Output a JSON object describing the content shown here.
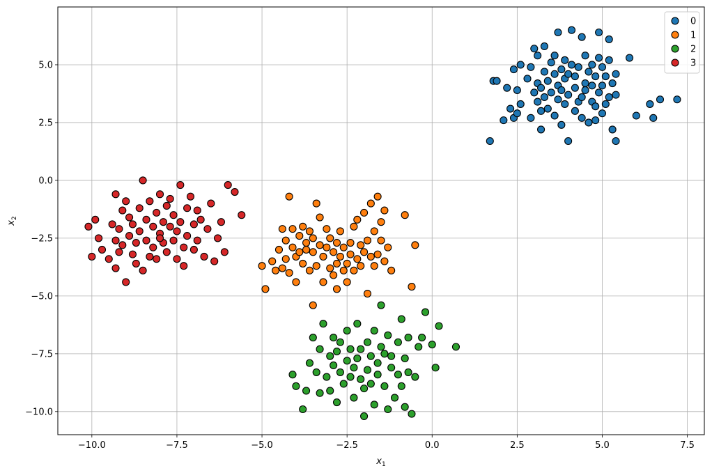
{
  "chart_data": {
    "type": "scatter",
    "xlabel": "x",
    "xlabel_sub": "1",
    "ylabel": "x",
    "ylabel_sub": "2",
    "xlim": [
      -11.0,
      8.0
    ],
    "ylim": [
      -11.0,
      7.5
    ],
    "xticks": [
      -10.0,
      -7.5,
      -5.0,
      -2.5,
      0.0,
      2.5,
      5.0,
      7.5
    ],
    "xtick_labels": [
      "−10.0",
      "−7.5",
      "−5.0",
      "−2.5",
      "0.0",
      "2.5",
      "5.0",
      "7.5"
    ],
    "yticks": [
      -10.0,
      -7.5,
      -5.0,
      -2.5,
      0.0,
      2.5,
      5.0
    ],
    "ytick_labels": [
      "−10.0",
      "−7.5",
      "−5.0",
      "−2.5",
      "0.0",
      "2.5",
      "5.0"
    ],
    "grid": true,
    "legend_position": "top-right",
    "series": [
      {
        "name": "0",
        "color": "#1f77b4",
        "points": [
          [
            1.7,
            1.7
          ],
          [
            1.8,
            4.3
          ],
          [
            1.9,
            4.3
          ],
          [
            2.1,
            2.6
          ],
          [
            2.2,
            4.0
          ],
          [
            2.3,
            3.1
          ],
          [
            2.4,
            2.7
          ],
          [
            2.4,
            4.8
          ],
          [
            2.5,
            2.9
          ],
          [
            2.5,
            3.9
          ],
          [
            2.6,
            5.0
          ],
          [
            2.6,
            3.3
          ],
          [
            2.8,
            4.4
          ],
          [
            2.9,
            2.7
          ],
          [
            2.9,
            4.9
          ],
          [
            3.0,
            3.8
          ],
          [
            3.0,
            5.7
          ],
          [
            3.1,
            3.4
          ],
          [
            3.1,
            4.2
          ],
          [
            3.1,
            5.4
          ],
          [
            3.2,
            4.0
          ],
          [
            3.2,
            3.0
          ],
          [
            3.2,
            2.2
          ],
          [
            3.3,
            4.7
          ],
          [
            3.3,
            3.6
          ],
          [
            3.3,
            5.8
          ],
          [
            3.4,
            4.3
          ],
          [
            3.4,
            3.1
          ],
          [
            3.5,
            5.1
          ],
          [
            3.5,
            3.8
          ],
          [
            3.6,
            4.6
          ],
          [
            3.6,
            5.4
          ],
          [
            3.6,
            2.8
          ],
          [
            3.7,
            4.1
          ],
          [
            3.7,
            3.5
          ],
          [
            3.7,
            6.4
          ],
          [
            3.8,
            4.8
          ],
          [
            3.8,
            3.9
          ],
          [
            3.8,
            2.4
          ],
          [
            3.9,
            5.2
          ],
          [
            3.9,
            4.4
          ],
          [
            3.9,
            3.3
          ],
          [
            4.0,
            1.7
          ],
          [
            4.0,
            4.6
          ],
          [
            4.0,
            3.7
          ],
          [
            4.1,
            6.5
          ],
          [
            4.1,
            5.0
          ],
          [
            4.2,
            4.0
          ],
          [
            4.2,
            3.0
          ],
          [
            4.2,
            4.5
          ],
          [
            4.3,
            3.4
          ],
          [
            4.3,
            4.9
          ],
          [
            4.4,
            3.6
          ],
          [
            4.4,
            6.2
          ],
          [
            4.4,
            2.7
          ],
          [
            4.5,
            4.2
          ],
          [
            4.5,
            5.4
          ],
          [
            4.5,
            3.9
          ],
          [
            4.6,
            2.5
          ],
          [
            4.6,
            4.7
          ],
          [
            4.7,
            3.4
          ],
          [
            4.7,
            5.0
          ],
          [
            4.7,
            4.1
          ],
          [
            4.8,
            3.2
          ],
          [
            4.8,
            4.5
          ],
          [
            4.8,
            2.6
          ],
          [
            4.9,
            5.3
          ],
          [
            4.9,
            3.8
          ],
          [
            4.9,
            6.4
          ],
          [
            5.0,
            4.9
          ],
          [
            5.0,
            4.1
          ],
          [
            5.0,
            2.9
          ],
          [
            5.1,
            3.3
          ],
          [
            5.1,
            4.5
          ],
          [
            5.2,
            3.6
          ],
          [
            5.2,
            6.1
          ],
          [
            5.2,
            5.2
          ],
          [
            5.3,
            4.2
          ],
          [
            5.3,
            2.2
          ],
          [
            5.4,
            4.6
          ],
          [
            5.4,
            3.7
          ],
          [
            5.4,
            1.7
          ],
          [
            5.8,
            5.3
          ],
          [
            6.0,
            2.8
          ],
          [
            6.4,
            3.3
          ],
          [
            6.5,
            2.7
          ],
          [
            6.7,
            3.5
          ],
          [
            7.2,
            3.5
          ]
        ]
      },
      {
        "name": "1",
        "color": "#ff7f0e",
        "points": [
          [
            -5.0,
            -3.7
          ],
          [
            -4.9,
            -4.7
          ],
          [
            -4.7,
            -3.5
          ],
          [
            -4.6,
            -3.9
          ],
          [
            -4.5,
            -3.0
          ],
          [
            -4.4,
            -3.8
          ],
          [
            -4.4,
            -2.1
          ],
          [
            -4.3,
            -2.6
          ],
          [
            -4.3,
            -3.4
          ],
          [
            -4.2,
            -4.0
          ],
          [
            -4.2,
            -0.7
          ],
          [
            -4.1,
            -2.9
          ],
          [
            -4.1,
            -2.1
          ],
          [
            -4.0,
            -3.3
          ],
          [
            -4.0,
            -4.4
          ],
          [
            -3.9,
            -2.4
          ],
          [
            -3.9,
            -3.1
          ],
          [
            -3.8,
            -2.0
          ],
          [
            -3.8,
            -3.6
          ],
          [
            -3.7,
            -2.7
          ],
          [
            -3.7,
            -3.0
          ],
          [
            -3.6,
            -2.2
          ],
          [
            -3.6,
            -3.9
          ],
          [
            -3.5,
            -3.1
          ],
          [
            -3.5,
            -2.5
          ],
          [
            -3.4,
            -3.7
          ],
          [
            -3.4,
            -1.0
          ],
          [
            -3.3,
            -2.8
          ],
          [
            -3.3,
            -1.6
          ],
          [
            -3.2,
            -3.3
          ],
          [
            -3.2,
            -4.4
          ],
          [
            -3.1,
            -2.1
          ],
          [
            -3.1,
            -2.9
          ],
          [
            -3.0,
            -3.8
          ],
          [
            -3.0,
            -2.5
          ],
          [
            -2.9,
            -4.1
          ],
          [
            -2.9,
            -3.1
          ],
          [
            -2.8,
            -2.7
          ],
          [
            -2.8,
            -3.6
          ],
          [
            -2.8,
            -4.7
          ],
          [
            -2.7,
            -2.2
          ],
          [
            -2.7,
            -3.3
          ],
          [
            -2.6,
            -3.9
          ],
          [
            -2.6,
            -2.9
          ],
          [
            -2.5,
            -3.6
          ],
          [
            -2.5,
            -4.4
          ],
          [
            -2.4,
            -2.7
          ],
          [
            -2.4,
            -3.2
          ],
          [
            -2.3,
            -3.9
          ],
          [
            -2.3,
            -2.0
          ],
          [
            -2.2,
            -3.4
          ],
          [
            -2.2,
            -1.7
          ],
          [
            -2.1,
            -2.8
          ],
          [
            -2.1,
            -3.7
          ],
          [
            -2.0,
            -1.4
          ],
          [
            -2.0,
            -3.1
          ],
          [
            -1.9,
            -4.9
          ],
          [
            -1.9,
            -2.6
          ],
          [
            -1.8,
            -3.3
          ],
          [
            -1.8,
            -1.0
          ],
          [
            -1.7,
            -3.7
          ],
          [
            -1.7,
            -2.2
          ],
          [
            -1.6,
            -0.7
          ],
          [
            -1.6,
            -3.2
          ],
          [
            -1.5,
            -1.8
          ],
          [
            -1.5,
            -2.6
          ],
          [
            -1.4,
            -3.5
          ],
          [
            -1.4,
            -1.3
          ],
          [
            -1.3,
            -2.9
          ],
          [
            -1.2,
            -3.9
          ],
          [
            -0.8,
            -1.5
          ],
          [
            -0.6,
            -4.6
          ],
          [
            -0.5,
            -2.8
          ],
          [
            -3.5,
            -5.4
          ]
        ]
      },
      {
        "name": "2",
        "color": "#2ca02c",
        "points": [
          [
            -3.8,
            -9.9
          ],
          [
            -3.7,
            -9.1
          ],
          [
            -3.6,
            -7.9
          ],
          [
            -3.5,
            -6.8
          ],
          [
            -3.4,
            -8.3
          ],
          [
            -3.3,
            -7.3
          ],
          [
            -3.3,
            -9.2
          ],
          [
            -3.2,
            -6.2
          ],
          [
            -3.1,
            -8.5
          ],
          [
            -3.0,
            -7.6
          ],
          [
            -3.0,
            -9.1
          ],
          [
            -2.9,
            -8.0
          ],
          [
            -2.9,
            -6.8
          ],
          [
            -2.8,
            -7.4
          ],
          [
            -2.8,
            -9.6
          ],
          [
            -2.7,
            -8.3
          ],
          [
            -2.7,
            -7.0
          ],
          [
            -2.6,
            -8.8
          ],
          [
            -2.5,
            -7.8
          ],
          [
            -2.5,
            -6.5
          ],
          [
            -2.4,
            -8.5
          ],
          [
            -2.4,
            -7.3
          ],
          [
            -2.3,
            -9.4
          ],
          [
            -2.3,
            -8.1
          ],
          [
            -2.2,
            -7.7
          ],
          [
            -2.2,
            -6.2
          ],
          [
            -2.1,
            -8.6
          ],
          [
            -2.1,
            -7.3
          ],
          [
            -2.0,
            -9.0
          ],
          [
            -2.0,
            -10.2
          ],
          [
            -1.9,
            -8.2
          ],
          [
            -1.9,
            -7.0
          ],
          [
            -1.8,
            -7.6
          ],
          [
            -1.8,
            -8.8
          ],
          [
            -1.7,
            -6.5
          ],
          [
            -1.7,
            -9.7
          ],
          [
            -1.6,
            -7.9
          ],
          [
            -1.6,
            -8.4
          ],
          [
            -1.5,
            -7.2
          ],
          [
            -1.5,
            -5.4
          ],
          [
            -1.4,
            -8.9
          ],
          [
            -1.4,
            -7.5
          ],
          [
            -1.3,
            -9.9
          ],
          [
            -1.3,
            -6.7
          ],
          [
            -1.2,
            -8.1
          ],
          [
            -1.2,
            -7.6
          ],
          [
            -1.1,
            -9.4
          ],
          [
            -1.0,
            -8.4
          ],
          [
            -1.0,
            -7.0
          ],
          [
            -0.9,
            -8.9
          ],
          [
            -0.9,
            -6.0
          ],
          [
            -0.8,
            -7.7
          ],
          [
            -0.8,
            -9.8
          ],
          [
            -0.7,
            -8.3
          ],
          [
            -0.7,
            -6.8
          ],
          [
            -0.6,
            -10.1
          ],
          [
            -0.5,
            -8.5
          ],
          [
            -0.4,
            -7.2
          ],
          [
            -0.3,
            -6.8
          ],
          [
            -0.2,
            -5.7
          ],
          [
            0.0,
            -7.1
          ],
          [
            0.1,
            -8.1
          ],
          [
            0.2,
            -6.3
          ],
          [
            0.7,
            -7.2
          ],
          [
            -4.0,
            -8.9
          ],
          [
            -4.1,
            -8.4
          ]
        ]
      },
      {
        "name": "3",
        "color": "#d62728",
        "points": [
          [
            -10.1,
            -2.0
          ],
          [
            -10.0,
            -3.3
          ],
          [
            -9.9,
            -1.7
          ],
          [
            -9.8,
            -2.5
          ],
          [
            -9.7,
            -3.0
          ],
          [
            -9.5,
            -3.4
          ],
          [
            -9.4,
            -1.9
          ],
          [
            -9.3,
            -2.6
          ],
          [
            -9.3,
            -0.6
          ],
          [
            -9.2,
            -2.1
          ],
          [
            -9.2,
            -3.1
          ],
          [
            -9.1,
            -1.3
          ],
          [
            -9.1,
            -2.8
          ],
          [
            -9.0,
            -4.4
          ],
          [
            -9.0,
            -0.9
          ],
          [
            -8.9,
            -2.4
          ],
          [
            -8.9,
            -1.6
          ],
          [
            -8.8,
            -3.2
          ],
          [
            -8.8,
            -1.9
          ],
          [
            -8.7,
            -3.6
          ],
          [
            -8.7,
            -2.7
          ],
          [
            -8.6,
            -1.2
          ],
          [
            -8.6,
            -2.2
          ],
          [
            -8.5,
            -3.9
          ],
          [
            -8.5,
            0.0
          ],
          [
            -8.4,
            -1.7
          ],
          [
            -8.4,
            -2.6
          ],
          [
            -8.3,
            -3.3
          ],
          [
            -8.3,
            -0.9
          ],
          [
            -8.2,
            -2.0
          ],
          [
            -8.2,
            -2.9
          ],
          [
            -8.1,
            -1.4
          ],
          [
            -8.1,
            -3.4
          ],
          [
            -8.0,
            -2.3
          ],
          [
            -8.0,
            -0.6
          ],
          [
            -7.9,
            -1.8
          ],
          [
            -7.9,
            -2.7
          ],
          [
            -7.8,
            -1.1
          ],
          [
            -7.8,
            -3.1
          ],
          [
            -7.7,
            -2.0
          ],
          [
            -7.7,
            -0.8
          ],
          [
            -7.6,
            -2.6
          ],
          [
            -7.6,
            -1.5
          ],
          [
            -7.5,
            -3.4
          ],
          [
            -7.5,
            -2.2
          ],
          [
            -7.4,
            -0.2
          ],
          [
            -7.4,
            -1.8
          ],
          [
            -7.3,
            -2.9
          ],
          [
            -7.3,
            -3.7
          ],
          [
            -7.2,
            -1.2
          ],
          [
            -7.2,
            -2.4
          ],
          [
            -7.1,
            -0.7
          ],
          [
            -7.0,
            -1.9
          ],
          [
            -7.0,
            -3.0
          ],
          [
            -6.9,
            -2.6
          ],
          [
            -6.9,
            -1.3
          ],
          [
            -6.8,
            -1.7
          ],
          [
            -6.7,
            -3.3
          ],
          [
            -6.6,
            -2.1
          ],
          [
            -6.5,
            -1.0
          ],
          [
            -6.4,
            -3.5
          ],
          [
            -6.3,
            -2.5
          ],
          [
            -6.2,
            -1.8
          ],
          [
            -6.1,
            -3.1
          ],
          [
            -6.0,
            -0.2
          ],
          [
            -5.8,
            -0.5
          ],
          [
            -5.6,
            -1.5
          ],
          [
            -9.3,
            -3.8
          ],
          [
            -8.0,
            -2.5
          ]
        ]
      }
    ]
  }
}
